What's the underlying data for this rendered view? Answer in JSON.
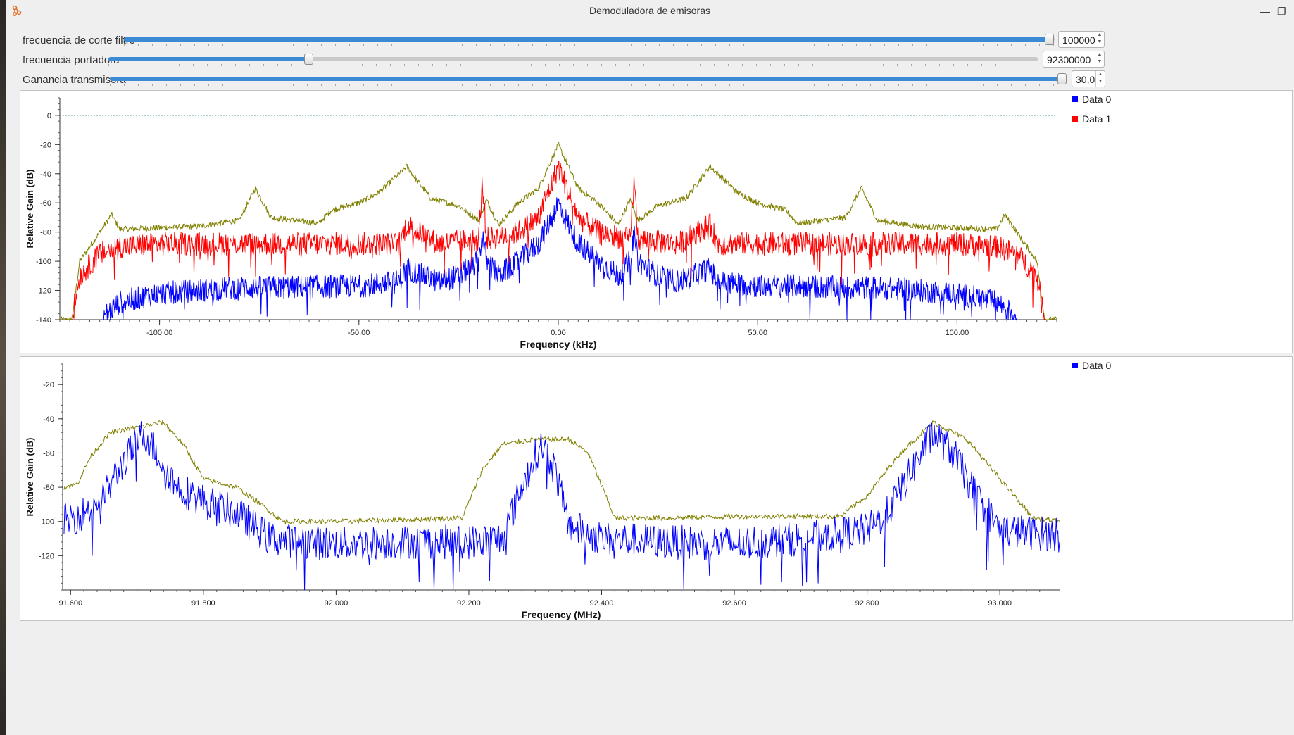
{
  "window": {
    "title": "Demoduladora de emisoras"
  },
  "controls": [
    {
      "label": "frecuencia de corte filtro",
      "value": "100000",
      "position": 1.0
    },
    {
      "label": "frecuencia portadora",
      "value": "92300000",
      "position": 0.215
    },
    {
      "label": "Ganancia transmisora",
      "value": "30,0",
      "position": 1.0
    }
  ],
  "plots": [
    {
      "ylabel": "Relative Gain (dB)",
      "xlabel": "Frequency (kHz)",
      "legend": [
        "Data 0",
        "Data 1"
      ]
    },
    {
      "ylabel": "Relative Gain (dB)",
      "xlabel": "Frequency (MHz)",
      "legend": [
        "Data 0"
      ]
    }
  ],
  "chart_data": [
    {
      "type": "line",
      "xlabel": "Frequency (kHz)",
      "ylabel": "Relative Gain (dB)",
      "xlim": [
        -125,
        125
      ],
      "ylim": [
        -140,
        12
      ],
      "xticks": [
        "-100.00",
        "-50.00",
        "0.00",
        "50.00",
        "100.00"
      ],
      "xtick_values": [
        -100,
        -50,
        0,
        50,
        100
      ],
      "yticks": [
        "0",
        "-20",
        "-40",
        "-60",
        "-80",
        "-100",
        "-120",
        "-140"
      ],
      "ytick_values": [
        0,
        -20,
        -40,
        -60,
        -80,
        -100,
        -120,
        -140
      ],
      "threshold": 0,
      "legend_position": "right",
      "colors": {
        "Data 0": "#0000ff",
        "Data 1": "#ff0000",
        "olive": "#808000",
        "threshold": "#008080"
      },
      "series": [
        {
          "name": "Data 0",
          "color": "#0000ff",
          "x": [
            -114,
            -110,
            -100,
            -90,
            -80,
            -70,
            -60,
            -50,
            -40,
            -38,
            -30,
            -25,
            -20,
            -19,
            -18,
            -15,
            -10,
            -5,
            -2,
            0,
            2,
            5,
            10,
            15,
            18,
            19,
            20,
            25,
            30,
            38,
            40,
            50,
            60,
            70,
            80,
            90,
            100,
            110,
            115
          ],
          "y": [
            -138,
            -128,
            -122,
            -120,
            -118,
            -118,
            -117,
            -117,
            -114,
            -105,
            -114,
            -110,
            -100,
            -82,
            -100,
            -110,
            -100,
            -88,
            -72,
            -60,
            -72,
            -88,
            -100,
            -110,
            -100,
            -82,
            -100,
            -110,
            -114,
            -105,
            -114,
            -117,
            -117,
            -118,
            -118,
            -120,
            -122,
            -128,
            -138
          ]
        },
        {
          "name": "Data 1",
          "color": "#ff0000",
          "x": [
            -122,
            -120,
            -115,
            -110,
            -100,
            -80,
            -60,
            -40,
            -38,
            -30,
            -20,
            -19,
            -18,
            -10,
            -5,
            0,
            5,
            10,
            18,
            19,
            20,
            30,
            38,
            40,
            60,
            80,
            100,
            110,
            115,
            120,
            122
          ],
          "y": [
            -140,
            -110,
            -95,
            -90,
            -88,
            -88,
            -88,
            -88,
            -75,
            -88,
            -85,
            -45,
            -85,
            -80,
            -70,
            -35,
            -70,
            -80,
            -85,
            -45,
            -85,
            -88,
            -75,
            -88,
            -88,
            -88,
            -88,
            -90,
            -95,
            -110,
            -140
          ]
        },
        {
          "name": "",
          "color": "#808000",
          "x": [
            -125,
            -122,
            -120,
            -115,
            -112,
            -110,
            -100,
            -90,
            -80,
            -76,
            -72,
            -60,
            -57,
            -50,
            -45,
            -38,
            -32,
            -25,
            -20,
            -18,
            -15,
            -10,
            -5,
            0,
            5,
            10,
            15,
            18,
            20,
            25,
            32,
            38,
            45,
            50,
            57,
            60,
            72,
            76,
            80,
            90,
            100,
            110,
            112,
            115,
            120,
            122,
            125
          ],
          "y": [
            -140,
            -140,
            -100,
            -80,
            -68,
            -78,
            -77,
            -76,
            -72,
            -50,
            -70,
            -74,
            -65,
            -60,
            -53,
            -35,
            -57,
            -62,
            -72,
            -58,
            -75,
            -60,
            -50,
            -20,
            -50,
            -60,
            -75,
            -58,
            -72,
            -62,
            -57,
            -35,
            -53,
            -60,
            -65,
            -74,
            -70,
            -50,
            -72,
            -76,
            -77,
            -78,
            -68,
            -80,
            -100,
            -140,
            -140
          ]
        }
      ]
    },
    {
      "type": "line",
      "xlabel": "Frequency (MHz)",
      "ylabel": "Relative Gain (dB)",
      "xlim": [
        91.588,
        93.09
      ],
      "ylim": [
        -140,
        -8
      ],
      "xticks": [
        "91.600",
        "91.800",
        "92.000",
        "92.200",
        "92.400",
        "92.600",
        "92.800",
        "93.000"
      ],
      "xtick_values": [
        91.6,
        91.8,
        92.0,
        92.2,
        92.4,
        92.6,
        92.8,
        93.0
      ],
      "yticks": [
        "-20",
        "-40",
        "-60",
        "-80",
        "-100",
        "-120"
      ],
      "ytick_values": [
        -20,
        -40,
        -60,
        -80,
        -100,
        -120
      ],
      "legend_position": "right",
      "series": [
        {
          "name": "Data 0",
          "color": "#0000ff",
          "x": [
            91.59,
            91.62,
            91.65,
            91.68,
            91.71,
            91.73,
            91.76,
            91.8,
            91.85,
            91.9,
            92.0,
            92.1,
            92.2,
            92.25,
            92.28,
            92.3,
            92.31,
            92.33,
            92.35,
            92.4,
            92.5,
            92.6,
            92.7,
            92.8,
            92.83,
            92.86,
            92.9,
            92.93,
            92.96,
            93.0,
            93.09
          ],
          "y": [
            -100,
            -95,
            -85,
            -65,
            -48,
            -60,
            -80,
            -88,
            -95,
            -110,
            -113,
            -112,
            -112,
            -110,
            -80,
            -62,
            -55,
            -70,
            -102,
            -110,
            -112,
            -113,
            -110,
            -105,
            -95,
            -75,
            -48,
            -60,
            -82,
            -105,
            -108
          ]
        },
        {
          "name": "",
          "color": "#808000",
          "x": [
            91.59,
            91.61,
            91.63,
            91.66,
            91.7,
            91.74,
            91.77,
            91.8,
            91.85,
            91.88,
            91.92,
            92.0,
            92.1,
            92.19,
            92.22,
            92.25,
            92.3,
            92.35,
            92.38,
            92.42,
            92.5,
            92.6,
            92.7,
            92.76,
            92.8,
            92.85,
            92.9,
            92.95,
            93.0,
            93.05,
            93.09
          ],
          "y": [
            -80,
            -78,
            -62,
            -48,
            -45,
            -42,
            -55,
            -75,
            -80,
            -88,
            -100,
            -100,
            -99,
            -98,
            -70,
            -55,
            -52,
            -52,
            -60,
            -98,
            -98,
            -97,
            -97,
            -97,
            -85,
            -60,
            -42,
            -52,
            -75,
            -98,
            -100
          ]
        }
      ]
    }
  ]
}
